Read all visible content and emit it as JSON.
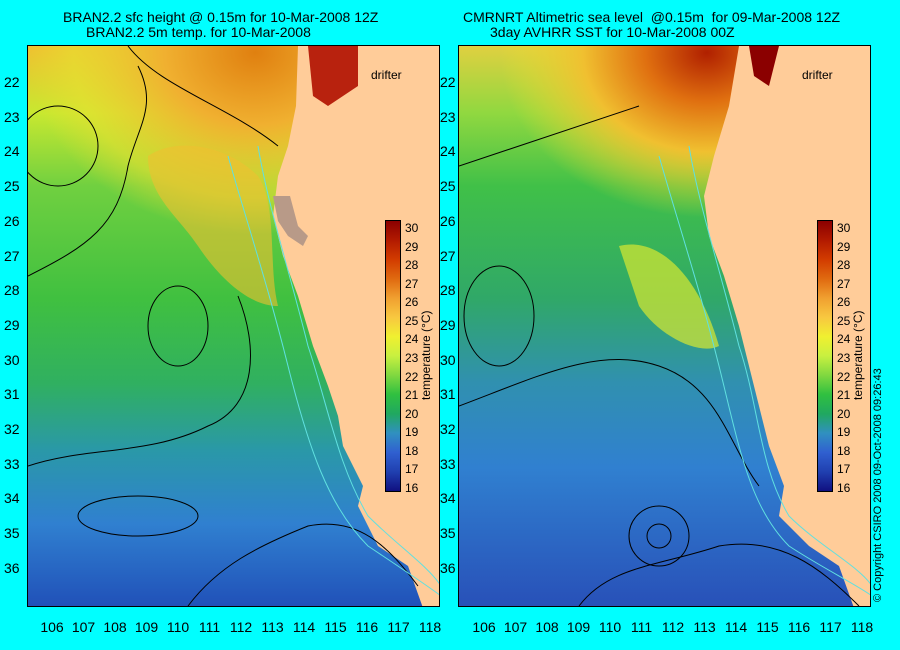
{
  "left": {
    "title_line1": "BRAN2.2 sfc height @ 0.15m for 10-Mar-2008 12Z",
    "title_line2": "BRAN2.2 5m temp. for 10-Mar-2008",
    "drifter_label": "drifter"
  },
  "right": {
    "title_line1": "CMRNRT Altimetric sea level  @0.15m  for 09-Mar-2008 12Z",
    "title_line2": "3day AVHRR SST for 10-Mar-2008 00Z",
    "drifter_label": "drifter"
  },
  "axes": {
    "lat_ticks": [
      "22",
      "23",
      "24",
      "25",
      "26",
      "27",
      "28",
      "29",
      "30",
      "31",
      "32",
      "33",
      "34",
      "35",
      "36"
    ],
    "lon_ticks": [
      "106",
      "107",
      "108",
      "109",
      "110",
      "111",
      "112",
      "113",
      "114",
      "115",
      "116",
      "117",
      "118"
    ]
  },
  "colorbar": {
    "title": "temperature (°C)",
    "ticks": [
      "30",
      "29",
      "28",
      "27",
      "26",
      "25",
      "24",
      "23",
      "22",
      "21",
      "20",
      "19",
      "18",
      "17",
      "16"
    ],
    "colors": [
      "#8b0000",
      "#b21a00",
      "#d23c00",
      "#e06a10",
      "#f0a030",
      "#f8c840",
      "#f0f030",
      "#c8f040",
      "#80d840",
      "#30c040",
      "#20a860",
      "#3090c0",
      "#3060d0",
      "#2040b0",
      "#101080"
    ]
  },
  "copyright": "© Copyright CSIRO 2008   09-Oct-2008 09:26:43",
  "colors": {
    "background": "#00ffff",
    "land": "#ffcc99",
    "gray_land": "#b89a88"
  }
}
